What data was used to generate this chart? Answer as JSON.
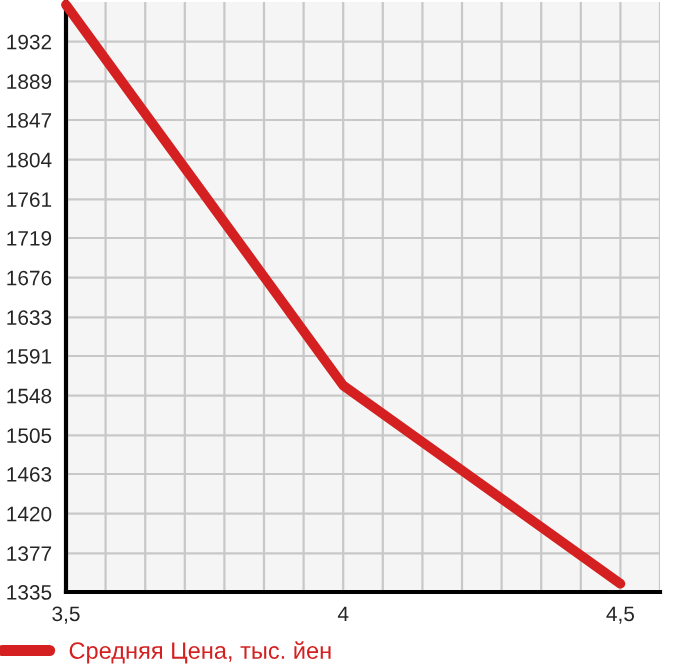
{
  "chart_data": {
    "type": "line",
    "x": [
      3.5,
      4,
      4.5
    ],
    "series": [
      {
        "name": "Средняя Цена, тыс. йен",
        "color": "#d42020",
        "values": [
          1972,
          1559,
          1344
        ]
      }
    ],
    "xlim": [
      3.5,
      4.5714
    ],
    "xticks": [
      {
        "value": 3.5,
        "label": "3,5"
      },
      {
        "value": 3.5714,
        "label": null
      },
      {
        "value": 3.6429,
        "label": null
      },
      {
        "value": 3.7143,
        "label": null
      },
      {
        "value": 3.7857,
        "label": null
      },
      {
        "value": 3.8571,
        "label": null
      },
      {
        "value": 3.9286,
        "label": null
      },
      4,
      {
        "value": 4.0714,
        "label": null
      },
      {
        "value": 4.1429,
        "label": null
      },
      {
        "value": 4.2143,
        "label": null
      },
      {
        "value": 4.2857,
        "label": null
      },
      {
        "value": 4.3571,
        "label": null
      },
      {
        "value": 4.4286,
        "label": null
      },
      {
        "value": 4.5,
        "label": "4,5"
      },
      {
        "value": 4.5714,
        "label": null
      }
    ],
    "ylim": [
      1335,
      1975
    ],
    "yticks": [
      1335,
      1377,
      1420,
      1463,
      1505,
      1548,
      1591,
      1633,
      1676,
      1719,
      1761,
      1804,
      1847,
      1889,
      1932
    ],
    "grid": true,
    "legend": "bottom left",
    "marker": "none",
    "line_style": "solid"
  }
}
